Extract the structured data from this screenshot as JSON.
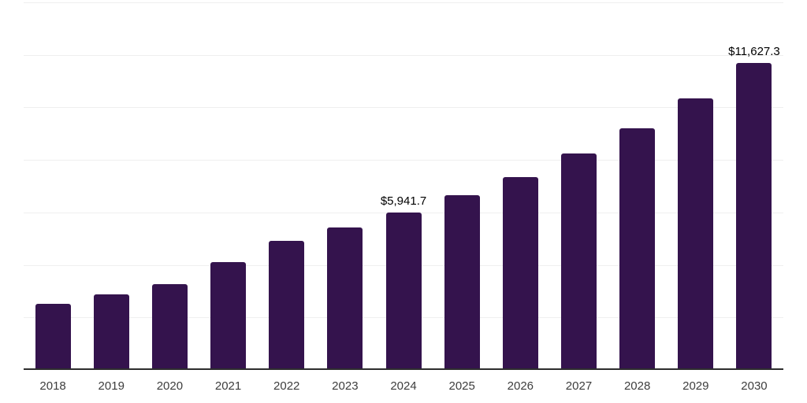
{
  "chart_data": {
    "type": "bar",
    "title": "",
    "xlabel": "",
    "ylabel": "",
    "categories": [
      "2018",
      "2019",
      "2020",
      "2021",
      "2022",
      "2023",
      "2024",
      "2025",
      "2026",
      "2027",
      "2028",
      "2029",
      "2030"
    ],
    "values": [
      2460,
      2830,
      3220,
      4050,
      4860,
      5360,
      5941.7,
      6590,
      7300,
      8200,
      9150,
      10280,
      11627.3
    ],
    "bar_labels": [
      "",
      "",
      "",
      "",
      "",
      "",
      "$5,941.7",
      "",
      "",
      "",
      "",
      "",
      "$11,627.3"
    ],
    "ylim": [
      0,
      14000
    ],
    "gridline_count": 7,
    "grid": "horizontal",
    "legend": "none",
    "colors": {
      "bar": "#34134D",
      "gridline": "#EFEFEF",
      "axis_line": "#2E2E2E",
      "tick_label": "#3D3D3D",
      "data_label": "#000000",
      "background": "#FFFFFF"
    }
  }
}
